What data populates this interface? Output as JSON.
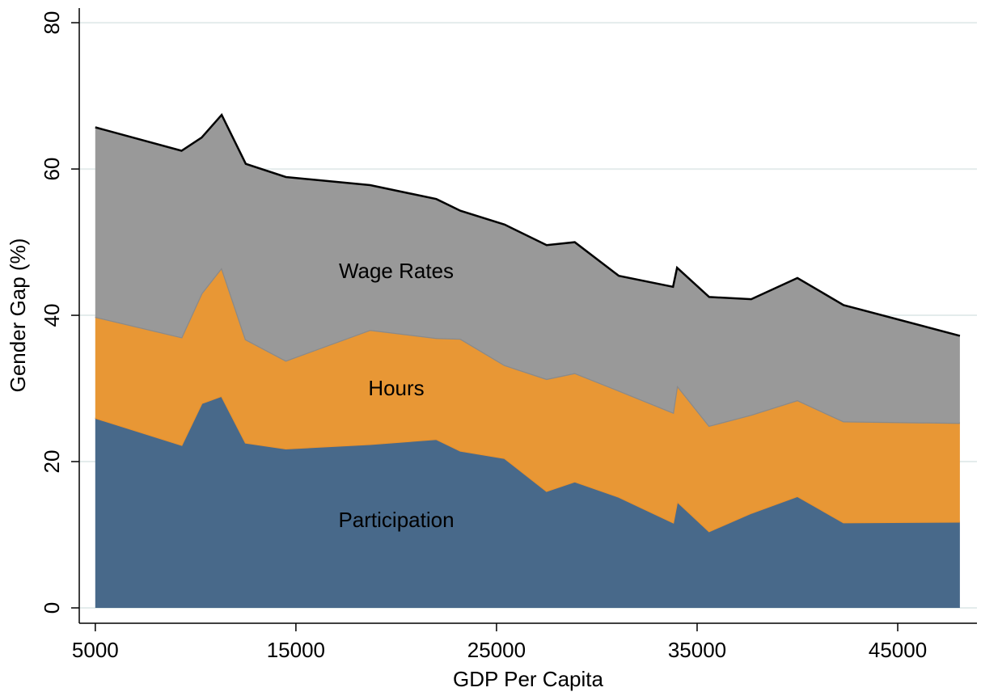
{
  "chart_data": {
    "type": "stacked_area",
    "x_label": "GDP Per Capita",
    "y_label": "Gender Gap (%)",
    "x": [
      5000,
      9300,
      10300,
      11300,
      12500,
      14500,
      18700,
      22000,
      23200,
      25400,
      27500,
      28900,
      31100,
      33800,
      34000,
      35600,
      37700,
      40000,
      42300,
      48100
    ],
    "series": [
      {
        "name": "Participation",
        "color": "#48698a",
        "stroke": "#e8922e",
        "values": [
          26,
          22.3,
          28,
          29,
          22.6,
          21.8,
          22.4,
          23.1,
          21.5,
          20.5,
          16,
          17.3,
          15.2,
          11.7,
          14.6,
          10.5,
          13,
          15.3,
          11.7,
          11.8
        ]
      },
      {
        "name": "Hours",
        "color": "#e89735",
        "stroke": "#8a8a8a",
        "values": [
          13.8,
          14.7,
          15,
          17.5,
          14.1,
          12,
          15.6,
          13.8,
          15.3,
          12.7,
          15.3,
          14.8,
          14.5,
          15,
          15.8,
          14.4,
          13.4,
          13.1,
          13.8,
          13.5
        ]
      },
      {
        "name": "Wage Rates",
        "color": "#999999",
        "stroke": "#000000",
        "values": [
          25.9,
          25.5,
          21.3,
          20.9,
          24,
          25.1,
          19.8,
          19,
          17.5,
          19.2,
          18.3,
          17.9,
          15.7,
          17.2,
          16.1,
          17.6,
          15.8,
          16.7,
          15.9,
          11.9
        ]
      }
    ],
    "xlim": [
      4200,
      48950
    ],
    "ylim": [
      -2.1,
      82
    ],
    "xticks": [
      5000,
      15000,
      25000,
      35000,
      45000
    ],
    "yticks": [
      0,
      20,
      40,
      60,
      80
    ],
    "grid": true
  }
}
